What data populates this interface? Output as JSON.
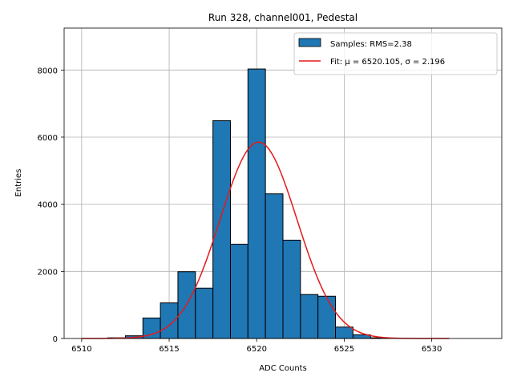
{
  "chart_data": {
    "type": "bar",
    "title": "Run 328, channel001, Pedestal",
    "xlabel": "ADC Counts",
    "ylabel": "Entries",
    "xlim": [
      6509,
      6534
    ],
    "ylim": [
      0,
      9250
    ],
    "grid": true,
    "legend_position": "top-right",
    "xticks": [
      6510,
      6515,
      6520,
      6525,
      6530
    ],
    "yticks": [
      0,
      2000,
      4000,
      6000,
      8000
    ],
    "histogram": {
      "name": "Samples: RMS=2.38",
      "bin_width": 1,
      "bins": [
        {
          "x": 6512,
          "count": 20
        },
        {
          "x": 6513,
          "count": 80
        },
        {
          "x": 6514,
          "count": 610
        },
        {
          "x": 6515,
          "count": 1060
        },
        {
          "x": 6516,
          "count": 1990
        },
        {
          "x": 6517,
          "count": 1500
        },
        {
          "x": 6518,
          "count": 6490
        },
        {
          "x": 6519,
          "count": 2810
        },
        {
          "x": 6520,
          "count": 8030
        },
        {
          "x": 6521,
          "count": 4310
        },
        {
          "x": 6522,
          "count": 2930
        },
        {
          "x": 6523,
          "count": 1310
        },
        {
          "x": 6524,
          "count": 1260
        },
        {
          "x": 6525,
          "count": 340
        },
        {
          "x": 6526,
          "count": 110
        },
        {
          "x": 6527,
          "count": 20
        }
      ],
      "color": "#1f77b4",
      "edge_color": "#000000"
    },
    "fit": {
      "name": "Fit: μ = 6520.105, σ = 2.196",
      "mu": 6520.105,
      "sigma": 2.196,
      "amplitude": 5850,
      "x_range": [
        6510,
        6531
      ],
      "color": "#e41a1c"
    }
  }
}
